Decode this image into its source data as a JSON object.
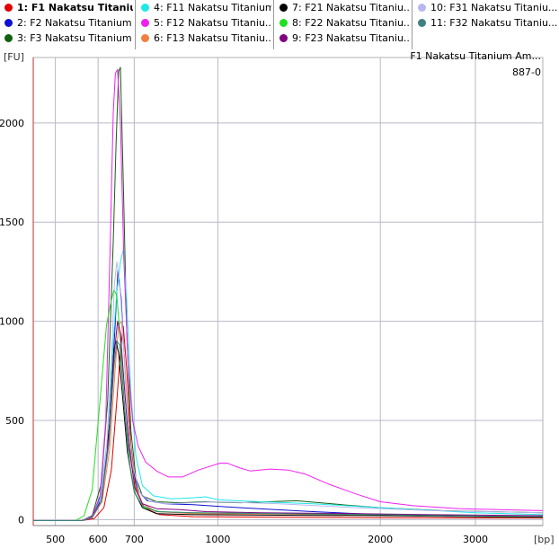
{
  "legend": {
    "items": [
      {
        "label": "1: F1 Nakatsu Titaniu...",
        "color": "#e00000",
        "selected": true
      },
      {
        "label": "2: F2 Nakatsu Titanium ...",
        "color": "#1010d0"
      },
      {
        "label": "3: F3 Nakatsu Titanium ...",
        "color": "#106010"
      },
      {
        "label": "4: F11 Nakatsu Titanium...",
        "color": "#20e8e8"
      },
      {
        "label": "5:  F12 Nakatsu Titaniu...",
        "color": "#f020f0"
      },
      {
        "label": "6: F13 Nakatsu Titaniu...",
        "color": "#f08040"
      },
      {
        "label": "7: F21 Nakatsu Titaniu...",
        "color": "#000000"
      },
      {
        "label": "8: F22 Nakatsu Titaniu...",
        "color": "#20e020"
      },
      {
        "label": "9: F23 Nakatsu Titaniu...",
        "color": "#800080"
      },
      {
        "label": "10: F31 Nakatsu Titaniu...",
        "color": "#b8b8f0"
      },
      {
        "label": "11: F32 Nakatsu Titaniu...",
        "color": "#408080"
      }
    ]
  },
  "header": {
    "sample_title": "F1 Nakatsu Titanium Am...",
    "sample_id": "887-0"
  },
  "chart_data": {
    "type": "line",
    "xlabel": "[bp]",
    "ylabel": "[FU]",
    "x_scale": "log",
    "x_ticks": [
      500,
      600,
      700,
      1000,
      2000,
      3000
    ],
    "y_ticks": [
      0,
      500,
      1000,
      1500,
      2000
    ],
    "xlim": [
      455,
      4000
    ],
    "ylim": [
      -30,
      2330
    ],
    "grid": true,
    "legend_position": "top",
    "series": [
      {
        "name": "1: F1 Nakatsu Titaniu...",
        "color": "#e00000",
        "points": [
          [
            455,
            -5
          ],
          [
            560,
            -5
          ],
          [
            590,
            5
          ],
          [
            615,
            60
          ],
          [
            635,
            250
          ],
          [
            650,
            600
          ],
          [
            660,
            850
          ],
          [
            668,
            975
          ],
          [
            678,
            760
          ],
          [
            690,
            380
          ],
          [
            705,
            160
          ],
          [
            730,
            60
          ],
          [
            780,
            25
          ],
          [
            900,
            15
          ],
          [
            1300,
            12
          ],
          [
            2000,
            10
          ],
          [
            3000,
            8
          ],
          [
            4000,
            8
          ]
        ]
      },
      {
        "name": "2: F2 Nakatsu Titanium ...",
        "color": "#1010d0",
        "points": [
          [
            455,
            -5
          ],
          [
            560,
            -5
          ],
          [
            585,
            15
          ],
          [
            610,
            140
          ],
          [
            630,
            480
          ],
          [
            645,
            970
          ],
          [
            653,
            1255
          ],
          [
            662,
            1120
          ],
          [
            675,
            680
          ],
          [
            690,
            320
          ],
          [
            710,
            150
          ],
          [
            740,
            95
          ],
          [
            800,
            80
          ],
          [
            900,
            75
          ],
          [
            1100,
            60
          ],
          [
            1500,
            40
          ],
          [
            2000,
            25
          ],
          [
            3000,
            18
          ],
          [
            4000,
            15
          ]
        ]
      },
      {
        "name": "3: F3 Nakatsu Titanium ...",
        "color": "#106010",
        "points": [
          [
            455,
            -5
          ],
          [
            560,
            -5
          ],
          [
            585,
            20
          ],
          [
            608,
            180
          ],
          [
            625,
            600
          ],
          [
            640,
            1400
          ],
          [
            648,
            1900
          ],
          [
            655,
            2260
          ],
          [
            660,
            2280
          ],
          [
            668,
            1700
          ],
          [
            678,
            950
          ],
          [
            690,
            450
          ],
          [
            705,
            210
          ],
          [
            725,
            120
          ],
          [
            770,
            90
          ],
          [
            850,
            85
          ],
          [
            950,
            90
          ],
          [
            1100,
            85
          ],
          [
            1400,
            95
          ],
          [
            1700,
            75
          ],
          [
            2000,
            60
          ],
          [
            2600,
            45
          ],
          [
            3200,
            40
          ],
          [
            4000,
            35
          ]
        ]
      },
      {
        "name": "4: F11 Nakatsu Titanium...",
        "color": "#20e8e8",
        "points": [
          [
            455,
            -5
          ],
          [
            560,
            -5
          ],
          [
            585,
            15
          ],
          [
            605,
            100
          ],
          [
            625,
            420
          ],
          [
            640,
            900
          ],
          [
            650,
            1150
          ],
          [
            660,
            1300
          ],
          [
            668,
            1360
          ],
          [
            678,
            1100
          ],
          [
            690,
            640
          ],
          [
            705,
            320
          ],
          [
            725,
            170
          ],
          [
            760,
            120
          ],
          [
            820,
            105
          ],
          [
            900,
            110
          ],
          [
            950,
            115
          ],
          [
            1000,
            100
          ],
          [
            1200,
            90
          ],
          [
            1500,
            80
          ],
          [
            2000,
            60
          ],
          [
            3000,
            35
          ],
          [
            4000,
            25
          ]
        ]
      },
      {
        "name": "5:  F12 Nakatsu Titaniu...",
        "color": "#f020f0",
        "points": [
          [
            455,
            -5
          ],
          [
            560,
            -5
          ],
          [
            585,
            15
          ],
          [
            605,
            120
          ],
          [
            620,
            500
          ],
          [
            632,
            1400
          ],
          [
            640,
            2050
          ],
          [
            646,
            2250
          ],
          [
            652,
            2270
          ],
          [
            660,
            2000
          ],
          [
            670,
            1300
          ],
          [
            682,
            780
          ],
          [
            695,
            500
          ],
          [
            712,
            370
          ],
          [
            735,
            290
          ],
          [
            770,
            245
          ],
          [
            810,
            215
          ],
          [
            860,
            215
          ],
          [
            920,
            250
          ],
          [
            970,
            270
          ],
          [
            1010,
            285
          ],
          [
            1040,
            285
          ],
          [
            1100,
            260
          ],
          [
            1150,
            245
          ],
          [
            1250,
            255
          ],
          [
            1350,
            250
          ],
          [
            1450,
            230
          ],
          [
            1600,
            180
          ],
          [
            1800,
            130
          ],
          [
            2000,
            90
          ],
          [
            2300,
            70
          ],
          [
            2800,
            55
          ],
          [
            3300,
            50
          ],
          [
            4000,
            45
          ]
        ]
      },
      {
        "name": "6: F13 Nakatsu Titaniu...",
        "color": "#f08040",
        "points": [
          [
            455,
            -5
          ],
          [
            560,
            -5
          ],
          [
            585,
            10
          ],
          [
            610,
            90
          ],
          [
            630,
            350
          ],
          [
            645,
            750
          ],
          [
            655,
            980
          ],
          [
            663,
            1000
          ],
          [
            672,
            800
          ],
          [
            685,
            420
          ],
          [
            700,
            190
          ],
          [
            725,
            80
          ],
          [
            770,
            40
          ],
          [
            900,
            30
          ],
          [
            1300,
            28
          ],
          [
            2000,
            22
          ],
          [
            3000,
            15
          ],
          [
            4000,
            12
          ]
        ]
      },
      {
        "name": "7: F21 Nakatsu Titaniu...",
        "color": "#000000",
        "points": [
          [
            455,
            -5
          ],
          [
            560,
            -5
          ],
          [
            585,
            10
          ],
          [
            610,
            110
          ],
          [
            630,
            480
          ],
          [
            642,
            860
          ],
          [
            648,
            900
          ],
          [
            655,
            840
          ],
          [
            665,
            640
          ],
          [
            680,
            340
          ],
          [
            700,
            140
          ],
          [
            725,
            60
          ],
          [
            770,
            30
          ],
          [
            900,
            25
          ],
          [
            1300,
            22
          ],
          [
            2000,
            20
          ],
          [
            3000,
            15
          ],
          [
            4000,
            12
          ]
        ]
      },
      {
        "name": "8: F22 Nakatsu Titaniu...",
        "color": "#20e020",
        "points": [
          [
            455,
            -5
          ],
          [
            545,
            -5
          ],
          [
            565,
            20
          ],
          [
            585,
            150
          ],
          [
            605,
            600
          ],
          [
            622,
            980
          ],
          [
            632,
            1080
          ],
          [
            642,
            1160
          ],
          [
            650,
            1130
          ],
          [
            660,
            900
          ],
          [
            672,
            560
          ],
          [
            688,
            260
          ],
          [
            705,
            120
          ],
          [
            730,
            60
          ],
          [
            780,
            40
          ],
          [
            900,
            35
          ],
          [
            1300,
            30
          ],
          [
            2000,
            25
          ],
          [
            3000,
            18
          ],
          [
            4000,
            15
          ]
        ]
      },
      {
        "name": "9: F23 Nakatsu Titaniu...",
        "color": "#800080",
        "points": [
          [
            455,
            -5
          ],
          [
            560,
            -5
          ],
          [
            585,
            10
          ],
          [
            608,
            100
          ],
          [
            628,
            420
          ],
          [
            642,
            820
          ],
          [
            652,
            1000
          ],
          [
            660,
            940
          ],
          [
            670,
            700
          ],
          [
            685,
            360
          ],
          [
            702,
            160
          ],
          [
            725,
            80
          ],
          [
            770,
            55
          ],
          [
            850,
            50
          ],
          [
            950,
            40
          ],
          [
            1200,
            35
          ],
          [
            1800,
            30
          ],
          [
            2500,
            25
          ],
          [
            4000,
            20
          ]
        ]
      },
      {
        "name": "10: F31 Nakatsu Titaniu...",
        "color": "#b8b8f0",
        "points": [
          [
            455,
            -5
          ],
          [
            560,
            -5
          ],
          [
            585,
            10
          ],
          [
            605,
            80
          ],
          [
            622,
            350
          ],
          [
            635,
            800
          ],
          [
            643,
            1180
          ],
          [
            650,
            1300
          ],
          [
            658,
            1200
          ],
          [
            668,
            900
          ],
          [
            680,
            520
          ],
          [
            695,
            280
          ],
          [
            715,
            140
          ],
          [
            745,
            95
          ],
          [
            800,
            80
          ],
          [
            900,
            85
          ],
          [
            1000,
            90
          ],
          [
            1300,
            80
          ],
          [
            1800,
            60
          ],
          [
            2500,
            45
          ],
          [
            4000,
            35
          ]
        ]
      },
      {
        "name": "11: F32 Nakatsu Titaniu...",
        "color": "#408080",
        "points": [
          [
            455,
            -5
          ],
          [
            560,
            -5
          ],
          [
            585,
            10
          ],
          [
            608,
            90
          ],
          [
            628,
            380
          ],
          [
            642,
            770
          ],
          [
            650,
            900
          ],
          [
            658,
            880
          ],
          [
            668,
            650
          ],
          [
            682,
            330
          ],
          [
            700,
            140
          ],
          [
            725,
            70
          ],
          [
            770,
            40
          ],
          [
            900,
            35
          ],
          [
            1300,
            30
          ],
          [
            2000,
            25
          ],
          [
            3000,
            18
          ],
          [
            4000,
            15
          ]
        ]
      }
    ]
  }
}
